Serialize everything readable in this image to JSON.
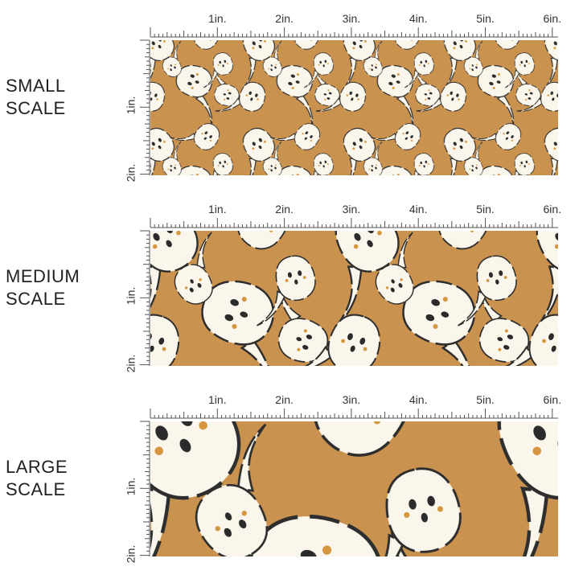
{
  "colors": {
    "background": "#c9924f",
    "ghost": "#faf6ec",
    "outline": "#2e2e2e",
    "eyes": "#2b2b2b",
    "freckles": "#d6953f",
    "ruler": "#555555"
  },
  "ruler": {
    "horizontal_labels": [
      "1in.",
      "2in.",
      "3in.",
      "4in.",
      "5in.",
      "6in."
    ],
    "vertical_labels": [
      "1in.",
      "2in."
    ]
  },
  "panels": [
    {
      "line1": "SMALL",
      "line2": "SCALE",
      "pattern_scale": "small"
    },
    {
      "line1": "MEDIUM",
      "line2": "SCALE",
      "pattern_scale": "medium"
    },
    {
      "line1": "LARGE",
      "line2": "SCALE",
      "pattern_scale": "large"
    }
  ]
}
